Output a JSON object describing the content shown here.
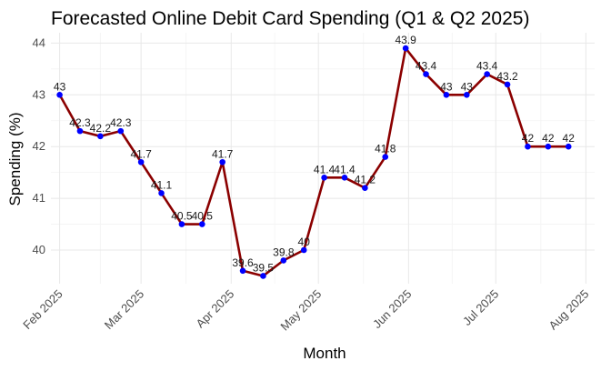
{
  "chart_data": {
    "type": "line",
    "title": "Forecasted Online Debit Card Spending (Q1 & Q2 2025)",
    "xlabel": "Month",
    "ylabel": "Spending (%)",
    "x_ticks": [
      {
        "date": "2025-02-01",
        "label": "Feb 2025"
      },
      {
        "date": "2025-03-01",
        "label": "Mar 2025"
      },
      {
        "date": "2025-04-01",
        "label": "Apr 2025"
      },
      {
        "date": "2025-05-01",
        "label": "May 2025"
      },
      {
        "date": "2025-06-01",
        "label": "Jun 2025"
      },
      {
        "date": "2025-07-01",
        "label": "Jul 2025"
      },
      {
        "date": "2025-08-01",
        "label": "Aug 2025"
      }
    ],
    "y_ticks": [
      40,
      41,
      42,
      43,
      44
    ],
    "xlim": [
      "2025-01-29",
      "2025-08-04"
    ],
    "ylim": [
      39.35,
      44.2
    ],
    "grid": true,
    "line_color": "#8b0000",
    "point_color": "#0000ff",
    "points": [
      {
        "x": "2025-02-01",
        "y": 43.0,
        "label": "43"
      },
      {
        "x": "2025-02-08",
        "y": 42.3,
        "label": "42.3"
      },
      {
        "x": "2025-02-15",
        "y": 42.2,
        "label": "42.2"
      },
      {
        "x": "2025-02-22",
        "y": 42.3,
        "label": "42.3"
      },
      {
        "x": "2025-03-01",
        "y": 41.7,
        "label": "41.7"
      },
      {
        "x": "2025-03-08",
        "y": 41.1,
        "label": "41.1"
      },
      {
        "x": "2025-03-15",
        "y": 40.5,
        "label": "40.5"
      },
      {
        "x": "2025-03-22",
        "y": 40.5,
        "label": "40.5"
      },
      {
        "x": "2025-03-29",
        "y": 41.7,
        "label": "41.7"
      },
      {
        "x": "2025-04-05",
        "y": 39.6,
        "label": "39.6"
      },
      {
        "x": "2025-04-12",
        "y": 39.5,
        "label": "39.5"
      },
      {
        "x": "2025-04-19",
        "y": 39.8,
        "label": "39.8"
      },
      {
        "x": "2025-04-26",
        "y": 40.0,
        "label": "40"
      },
      {
        "x": "2025-05-03",
        "y": 41.4,
        "label": "41.4"
      },
      {
        "x": "2025-05-10",
        "y": 41.4,
        "label": "41.4"
      },
      {
        "x": "2025-05-17",
        "y": 41.2,
        "label": "41.2"
      },
      {
        "x": "2025-05-24",
        "y": 41.8,
        "label": "41.8"
      },
      {
        "x": "2025-05-31",
        "y": 43.9,
        "label": "43.9"
      },
      {
        "x": "2025-06-07",
        "y": 43.4,
        "label": "43.4"
      },
      {
        "x": "2025-06-14",
        "y": 43.0,
        "label": "43"
      },
      {
        "x": "2025-06-21",
        "y": 43.0,
        "label": "43"
      },
      {
        "x": "2025-06-28",
        "y": 43.4,
        "label": "43.4"
      },
      {
        "x": "2025-07-05",
        "y": 43.2,
        "label": "43.2"
      },
      {
        "x": "2025-07-12",
        "y": 42.0,
        "label": "42"
      },
      {
        "x": "2025-07-19",
        "y": 42.0,
        "label": "42"
      },
      {
        "x": "2025-07-26",
        "y": 42.0,
        "label": "42"
      }
    ]
  }
}
